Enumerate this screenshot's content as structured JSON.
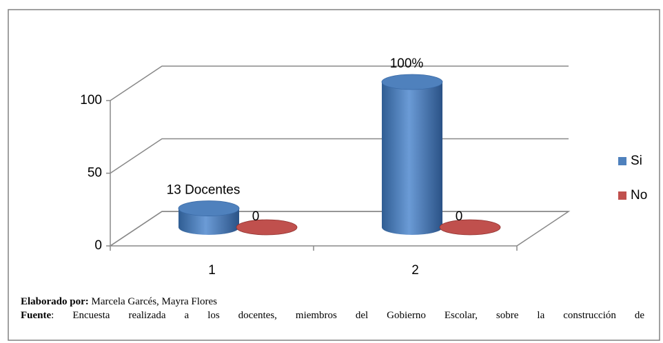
{
  "chart_data": {
    "type": "bar3d",
    "categories": [
      "1",
      "2"
    ],
    "series": [
      {
        "name": "Si",
        "color": "#4f81bd",
        "values": [
          13,
          100
        ],
        "value_labels": [
          "13 Docentes",
          "100%"
        ]
      },
      {
        "name": "No",
        "color": "#c0504d",
        "values": [
          0,
          0
        ],
        "value_labels": [
          "0",
          "0"
        ]
      }
    ],
    "ylim": [
      0,
      100
    ],
    "yticks": [
      0,
      50,
      100
    ],
    "grid": true,
    "legend": "right"
  },
  "caption": {
    "author_label": "Elaborado por:",
    "author": "Marcela Garcés, Mayra Flores",
    "source_label": "Fuente",
    "source": ": Encuesta realizada a los docentes, miembros del Gobierno Escolar, sobre la construcción de"
  }
}
